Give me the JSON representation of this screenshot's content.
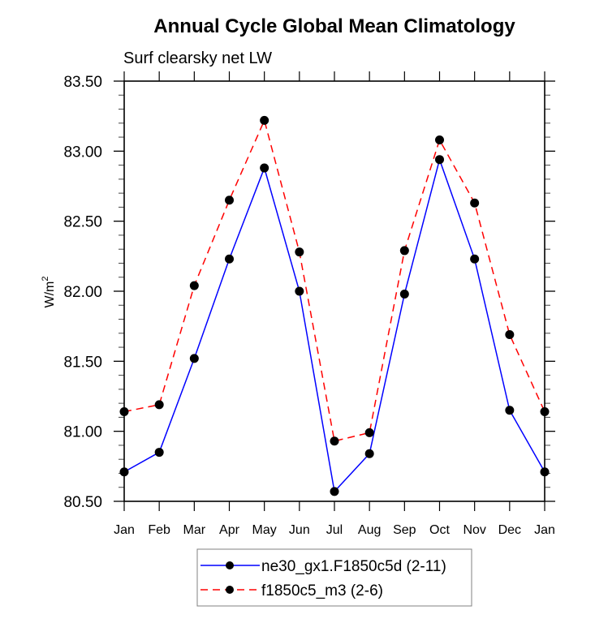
{
  "chart_data": {
    "type": "line",
    "title": "Annual Cycle Global Mean Climatology",
    "subtitle": "Surf clearsky net LW",
    "xlabel": "",
    "ylabel": "W/m",
    "ylabel_superscript": "2",
    "categories": [
      "Jan",
      "Feb",
      "Mar",
      "Apr",
      "May",
      "Jun",
      "Jul",
      "Aug",
      "Sep",
      "Oct",
      "Nov",
      "Dec",
      "Jan"
    ],
    "ylim": [
      80.5,
      83.5
    ],
    "yticks": [
      80.5,
      81.0,
      81.5,
      82.0,
      82.5,
      83.0,
      83.5
    ],
    "ytick_labels": [
      "80.50",
      "81.00",
      "81.50",
      "82.00",
      "82.50",
      "83.00",
      "83.50"
    ],
    "y_minor_step": 0.1,
    "grid": false,
    "legend_position": "bottom-center",
    "series": [
      {
        "name": "ne30_gx1.F1850c5d (2-11)",
        "color": "#0000ff",
        "line_style": "solid",
        "marker": "filled-circle",
        "marker_color": "#000000",
        "values": [
          80.71,
          80.85,
          81.52,
          82.23,
          82.88,
          82.0,
          80.57,
          80.84,
          81.98,
          82.94,
          82.23,
          81.15,
          80.71
        ]
      },
      {
        "name": "f1850c5_m3 (2-6)",
        "color": "#ff0000",
        "line_style": "dashed",
        "marker": "filled-circle",
        "marker_color": "#000000",
        "values": [
          81.14,
          81.19,
          82.04,
          82.65,
          83.22,
          82.28,
          80.93,
          80.99,
          82.29,
          83.08,
          82.63,
          81.69,
          81.14
        ]
      }
    ]
  }
}
